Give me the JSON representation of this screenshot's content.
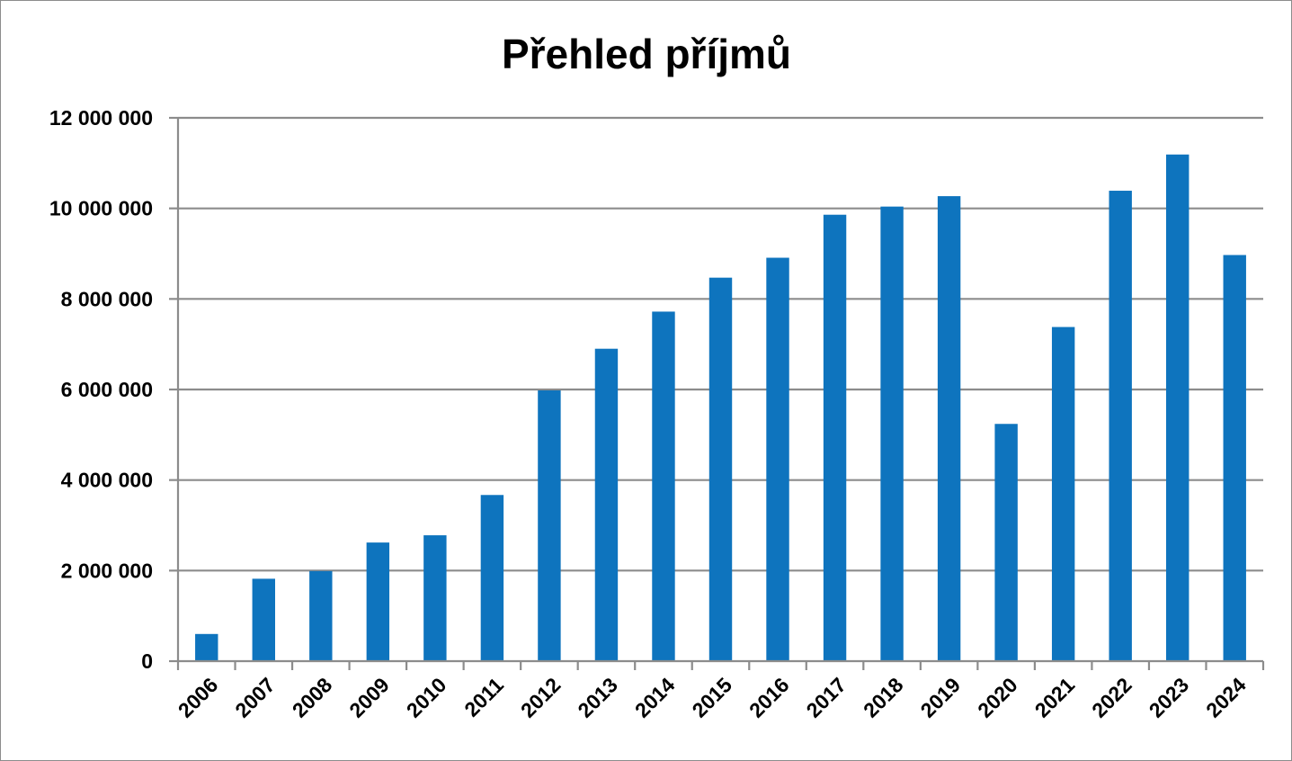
{
  "chart_data": {
    "type": "bar",
    "title": "Přehled příjmů",
    "xlabel": "",
    "ylabel": "",
    "categories": [
      "2006",
      "2007",
      "2008",
      "2009",
      "2010",
      "2011",
      "2012",
      "2013",
      "2014",
      "2015",
      "2016",
      "2017",
      "2018",
      "2019",
      "2020",
      "2021",
      "2022",
      "2023",
      "2024"
    ],
    "values": [
      600000,
      1820000,
      1990000,
      2620000,
      2780000,
      3670000,
      5980000,
      6900000,
      7720000,
      8470000,
      8910000,
      9860000,
      10040000,
      10270000,
      5240000,
      7380000,
      10390000,
      11190000,
      8970000
    ],
    "ylim": [
      0,
      12000000
    ],
    "yticks": [
      0,
      2000000,
      4000000,
      6000000,
      8000000,
      10000000,
      12000000
    ],
    "ytick_labels": [
      "0",
      "2 000 000",
      "4 000 000",
      "6 000 000",
      "8 000 000",
      "10 000 000",
      "12 000 000"
    ],
    "grid": true,
    "legend": "none",
    "bar_color": "#0E74BE",
    "grid_color": "#8C8C8C"
  }
}
